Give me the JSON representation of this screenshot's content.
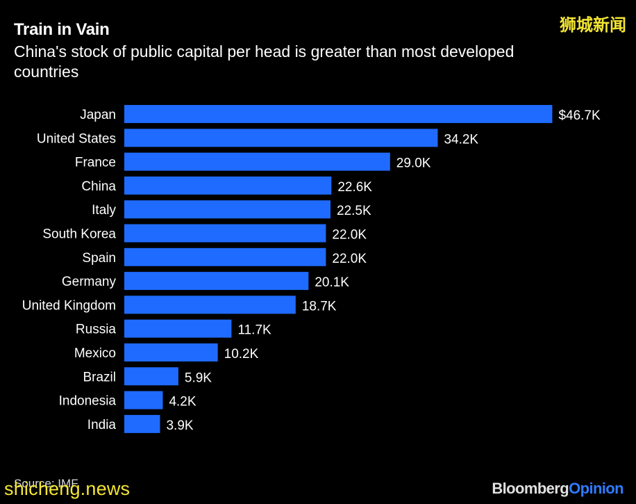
{
  "chart_data": {
    "type": "bar",
    "orientation": "horizontal",
    "title": "Train in Vain",
    "subtitle": "China's stock of public capital per head is greater than most developed countries",
    "categories": [
      "Japan",
      "United States",
      "France",
      "China",
      "Italy",
      "South Korea",
      "Spain",
      "Germany",
      "United Kingdom",
      "Russia",
      "Mexico",
      "Brazil",
      "Indonesia",
      "India"
    ],
    "values": [
      46.7,
      34.2,
      29.0,
      22.6,
      22.5,
      22.0,
      22.0,
      20.1,
      18.7,
      11.7,
      10.2,
      5.9,
      4.2,
      3.9
    ],
    "value_labels": [
      "$46.7K",
      "34.2K",
      "29.0K",
      "22.6K",
      "22.5K",
      "22.0K",
      "22.0K",
      "20.1K",
      "18.7K",
      "11.7K",
      "10.2K",
      "5.9K",
      "4.2K",
      "3.9K"
    ],
    "bar_color": "#1f6bff",
    "grid": false,
    "legend": "none"
  },
  "footer": {
    "source": "Source: IMF",
    "brand_part1": "Bloomberg",
    "brand_part2": "Opinion"
  },
  "watermarks": {
    "top_right": "狮城新闻",
    "bottom_left": "shicheng.news"
  }
}
